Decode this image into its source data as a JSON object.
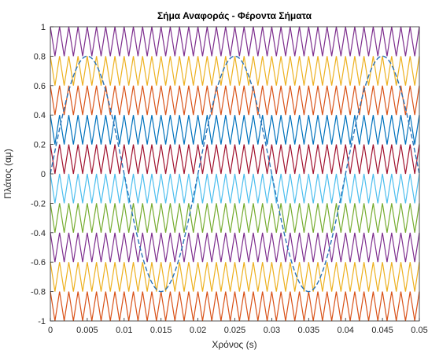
{
  "chart_data": {
    "type": "line",
    "title": "Σήμα Αναφοράς - Φέροντα Σήματα",
    "xlabel": "Χρόνος (s)",
    "ylabel": "Πλάτος (αμ)",
    "xlim": [
      0,
      0.05
    ],
    "ylim": [
      -1,
      1
    ],
    "x_ticks": [
      "0",
      "0.005",
      "0.01",
      "0.015",
      "0.02",
      "0.025",
      "0.03",
      "0.035",
      "0.04",
      "0.045",
      "0.05"
    ],
    "y_ticks": [
      "1",
      "0.8",
      "0.6",
      "0.4",
      "0.2",
      "0",
      "-0.2",
      "-0.4",
      "-0.6",
      "-0.8",
      "-1"
    ],
    "grid": false,
    "reference_signal": {
      "shape": "sine",
      "amplitude": 0.8,
      "frequency_hz": 50,
      "color": "#2a73b8",
      "style": "dashed"
    },
    "carrier_signals": {
      "shape": "triangle",
      "count": 10,
      "periods_in_window": 40,
      "bands": [
        {
          "ymin": 0.8,
          "ymax": 1.0,
          "color": "#7e2f8e"
        },
        {
          "ymin": 0.6,
          "ymax": 0.8,
          "color": "#edb120"
        },
        {
          "ymin": 0.4,
          "ymax": 0.6,
          "color": "#d95319"
        },
        {
          "ymin": 0.2,
          "ymax": 0.4,
          "color": "#0072bd"
        },
        {
          "ymin": 0.0,
          "ymax": 0.2,
          "color": "#a2142f"
        },
        {
          "ymin": -0.2,
          "ymax": 0.0,
          "color": "#4dbeee"
        },
        {
          "ymin": -0.4,
          "ymax": -0.2,
          "color": "#77ac30"
        },
        {
          "ymin": -0.6,
          "ymax": -0.4,
          "color": "#7e2f8e"
        },
        {
          "ymin": -0.8,
          "ymax": -0.6,
          "color": "#edb120"
        },
        {
          "ymin": -1.0,
          "ymax": -0.8,
          "color": "#d95319"
        }
      ]
    }
  }
}
